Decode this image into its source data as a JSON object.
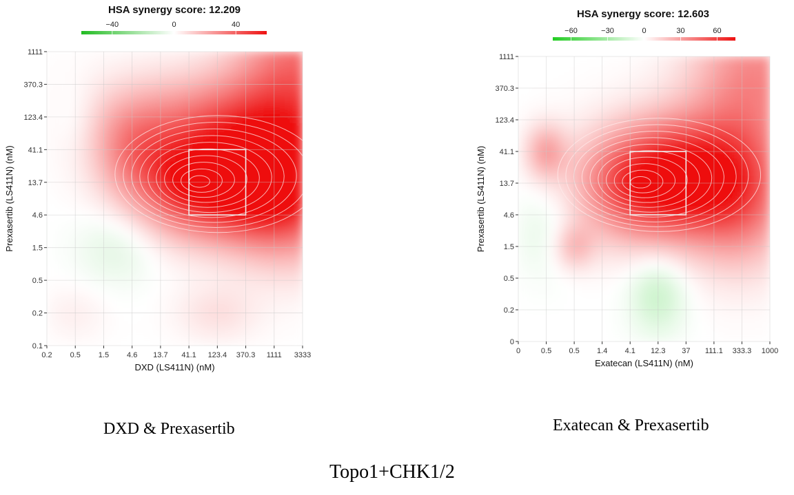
{
  "figure": {
    "caption_main": "Topo1+CHK1/2"
  },
  "chart_data": [
    {
      "type": "heatmap",
      "title": "HSA synergy score: 12.209",
      "xlabel": "DXD (LS411N) (nM)",
      "ylabel": "Prexasertib (LS411N) (nM)",
      "x_ticks": [
        "0.2",
        "0.5",
        "1.5",
        "4.6",
        "13.7",
        "41.1",
        "123.4",
        "370.3",
        "1111",
        "3333"
      ],
      "y_ticks": [
        "0.1",
        "0.2",
        "0.5",
        "1.5",
        "4.6",
        "13.7",
        "41.1",
        "123.4",
        "370.3",
        "1111"
      ],
      "colorbar": {
        "min": -60,
        "max": 60,
        "ticks": [
          "−40",
          "0",
          "40"
        ],
        "tick_values": [
          -40,
          0,
          40
        ],
        "low_color": "#22bb22",
        "mid_color": "#ffffff",
        "high_color": "#ee1111"
      },
      "max_synergy_area": {
        "x_range": [
          "41.1",
          "370.3"
        ],
        "y_range": [
          "4.6",
          "41.1"
        ]
      },
      "caption": "DXD & Prexasertib",
      "peaks": [
        {
          "x": 5.3,
          "y": 5.0,
          "value": 60,
          "sx": 1.5,
          "sy": 1.1
        },
        {
          "x": 7.3,
          "y": 5.1,
          "value": 45,
          "sx": 1.2,
          "sy": 1.3
        },
        {
          "x": 8.8,
          "y": 5.0,
          "value": 45,
          "sx": 1.2,
          "sy": 1.5
        },
        {
          "x": 6.5,
          "y": 7.0,
          "value": 28,
          "sx": 3.0,
          "sy": 1.0
        },
        {
          "x": 8.8,
          "y": 8.8,
          "value": 30,
          "sx": 1.5,
          "sy": 1.2
        },
        {
          "x": 3.0,
          "y": 6.0,
          "value": 20,
          "sx": 1.0,
          "sy": 1.0
        },
        {
          "x": 6.0,
          "y": 1.0,
          "value": 8,
          "sx": 1.0,
          "sy": 0.6
        },
        {
          "x": 2.5,
          "y": 3.0,
          "value": -8,
          "sx": 1.0,
          "sy": 0.8
        },
        {
          "x": 1.0,
          "y": 7.0,
          "value": -5,
          "sx": 0.6,
          "sy": 0.8
        },
        {
          "x": 1.0,
          "y": 1.0,
          "value": 4,
          "sx": 0.8,
          "sy": 0.6
        }
      ]
    },
    {
      "type": "heatmap",
      "title": "HSA synergy score: 12.603",
      "xlabel": "Exatecan (LS411N) (nM)",
      "ylabel": "Prexasertib (LS411N) (nM)",
      "x_ticks": [
        "0",
        "0.5",
        "0.5",
        "1.4",
        "4.1",
        "12.3",
        "37",
        "111.1",
        "333.3",
        "1000"
      ],
      "y_ticks": [
        "0",
        "0.2",
        "0.5",
        "1.5",
        "4.6",
        "13.7",
        "41.1",
        "123.4",
        "370.3",
        "1111"
      ],
      "colorbar": {
        "min": -75,
        "max": 75,
        "ticks": [
          "−60",
          "−30",
          "0",
          "30",
          "60"
        ],
        "tick_values": [
          -60,
          -30,
          0,
          30,
          60
        ],
        "low_color": "#22cc22",
        "mid_color": "#ffffff",
        "high_color": "#ee1111"
      },
      "max_synergy_area": {
        "x_range": [
          "4.1",
          "37"
        ],
        "y_range": [
          "4.6",
          "41.1"
        ]
      },
      "caption": "Exatecan & Prexasertib",
      "peaks": [
        {
          "x": 4.3,
          "y": 5.0,
          "value": 60,
          "sx": 1.5,
          "sy": 1.2
        },
        {
          "x": 6.2,
          "y": 5.2,
          "value": 55,
          "sx": 1.4,
          "sy": 1.3
        },
        {
          "x": 8.0,
          "y": 4.8,
          "value": 45,
          "sx": 1.2,
          "sy": 1.6
        },
        {
          "x": 8.5,
          "y": 8.5,
          "value": 35,
          "sx": 1.6,
          "sy": 1.5
        },
        {
          "x": 1.0,
          "y": 6.0,
          "value": 28,
          "sx": 0.5,
          "sy": 0.6
        },
        {
          "x": 2.0,
          "y": 3.0,
          "value": 22,
          "sx": 0.5,
          "sy": 0.5
        },
        {
          "x": 5.0,
          "y": 1.5,
          "value": -18,
          "sx": 0.7,
          "sy": 0.9
        },
        {
          "x": 1.0,
          "y": 3.5,
          "value": -8,
          "sx": 0.8,
          "sy": 1.0
        }
      ]
    }
  ]
}
